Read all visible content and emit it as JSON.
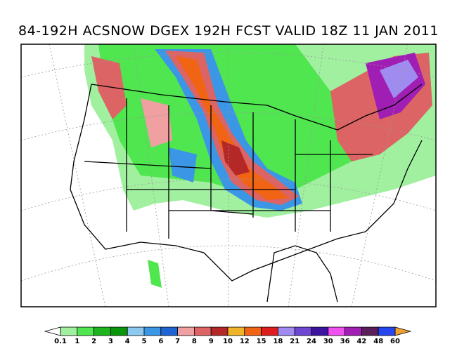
{
  "title": "84-192H ACSNOW DGEX 192H FCST VALID 18Z 11 JAN 2011",
  "colorbar": {
    "levels": [
      0.1,
      1,
      2,
      3,
      4,
      5,
      6,
      7,
      8,
      9,
      10,
      12,
      15,
      18,
      21,
      24,
      30,
      36,
      42,
      48,
      60
    ],
    "colors": [
      "#a0f0a0",
      "#50e650",
      "#1eb41e",
      "#0a960a",
      "#8cc8f0",
      "#3c96e6",
      "#1e64d2",
      "#f0a0a0",
      "#dc6464",
      "#b42828",
      "#f0b428",
      "#f06414",
      "#dc1e1e",
      "#a08cf0",
      "#6e46d2",
      "#3c14a0",
      "#f050f0",
      "#a01eb4",
      "#5a1e5a",
      "#2846f0"
    ],
    "under_color": "#ffffff",
    "over_color": "#f0a030"
  }
}
